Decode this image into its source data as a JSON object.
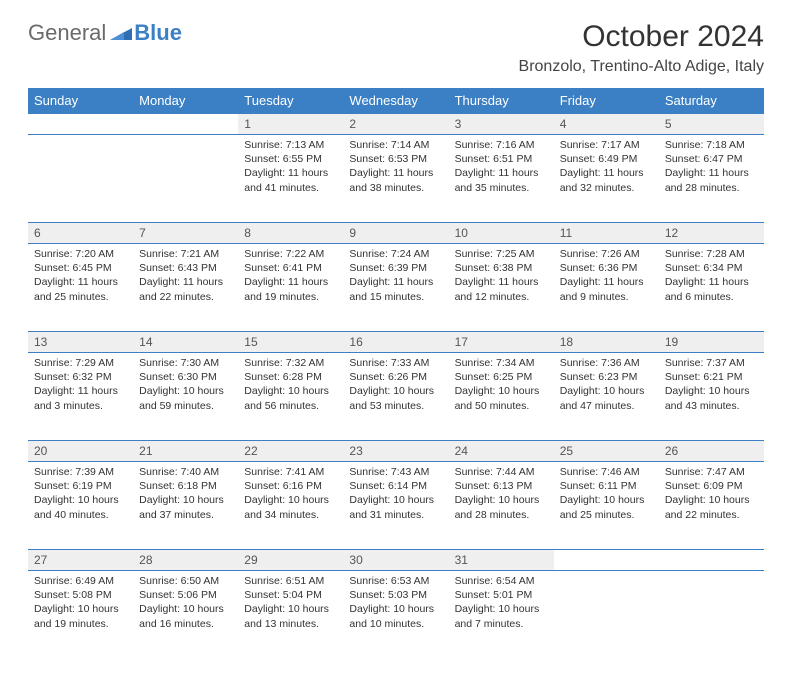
{
  "brand": {
    "part1": "General",
    "part2": "Blue"
  },
  "title": "October 2024",
  "location": "Bronzolo, Trentino-Alto Adige, Italy",
  "colors": {
    "header_bg": "#3b7fc4",
    "daynum_bg": "#efefef",
    "border": "#3b7fc4",
    "text": "#333333",
    "bg": "#ffffff"
  },
  "typography": {
    "title_fontsize": 30,
    "location_fontsize": 16,
    "dayhead_fontsize": 13,
    "cell_fontsize": 10.5
  },
  "days_of_week": [
    "Sunday",
    "Monday",
    "Tuesday",
    "Wednesday",
    "Thursday",
    "Friday",
    "Saturday"
  ],
  "weeks": [
    [
      null,
      null,
      {
        "n": "1",
        "sr": "7:13 AM",
        "ss": "6:55 PM",
        "dl": "11 hours and 41 minutes."
      },
      {
        "n": "2",
        "sr": "7:14 AM",
        "ss": "6:53 PM",
        "dl": "11 hours and 38 minutes."
      },
      {
        "n": "3",
        "sr": "7:16 AM",
        "ss": "6:51 PM",
        "dl": "11 hours and 35 minutes."
      },
      {
        "n": "4",
        "sr": "7:17 AM",
        "ss": "6:49 PM",
        "dl": "11 hours and 32 minutes."
      },
      {
        "n": "5",
        "sr": "7:18 AM",
        "ss": "6:47 PM",
        "dl": "11 hours and 28 minutes."
      }
    ],
    [
      {
        "n": "6",
        "sr": "7:20 AM",
        "ss": "6:45 PM",
        "dl": "11 hours and 25 minutes."
      },
      {
        "n": "7",
        "sr": "7:21 AM",
        "ss": "6:43 PM",
        "dl": "11 hours and 22 minutes."
      },
      {
        "n": "8",
        "sr": "7:22 AM",
        "ss": "6:41 PM",
        "dl": "11 hours and 19 minutes."
      },
      {
        "n": "9",
        "sr": "7:24 AM",
        "ss": "6:39 PM",
        "dl": "11 hours and 15 minutes."
      },
      {
        "n": "10",
        "sr": "7:25 AM",
        "ss": "6:38 PM",
        "dl": "11 hours and 12 minutes."
      },
      {
        "n": "11",
        "sr": "7:26 AM",
        "ss": "6:36 PM",
        "dl": "11 hours and 9 minutes."
      },
      {
        "n": "12",
        "sr": "7:28 AM",
        "ss": "6:34 PM",
        "dl": "11 hours and 6 minutes."
      }
    ],
    [
      {
        "n": "13",
        "sr": "7:29 AM",
        "ss": "6:32 PM",
        "dl": "11 hours and 3 minutes."
      },
      {
        "n": "14",
        "sr": "7:30 AM",
        "ss": "6:30 PM",
        "dl": "10 hours and 59 minutes."
      },
      {
        "n": "15",
        "sr": "7:32 AM",
        "ss": "6:28 PM",
        "dl": "10 hours and 56 minutes."
      },
      {
        "n": "16",
        "sr": "7:33 AM",
        "ss": "6:26 PM",
        "dl": "10 hours and 53 minutes."
      },
      {
        "n": "17",
        "sr": "7:34 AM",
        "ss": "6:25 PM",
        "dl": "10 hours and 50 minutes."
      },
      {
        "n": "18",
        "sr": "7:36 AM",
        "ss": "6:23 PM",
        "dl": "10 hours and 47 minutes."
      },
      {
        "n": "19",
        "sr": "7:37 AM",
        "ss": "6:21 PM",
        "dl": "10 hours and 43 minutes."
      }
    ],
    [
      {
        "n": "20",
        "sr": "7:39 AM",
        "ss": "6:19 PM",
        "dl": "10 hours and 40 minutes."
      },
      {
        "n": "21",
        "sr": "7:40 AM",
        "ss": "6:18 PM",
        "dl": "10 hours and 37 minutes."
      },
      {
        "n": "22",
        "sr": "7:41 AM",
        "ss": "6:16 PM",
        "dl": "10 hours and 34 minutes."
      },
      {
        "n": "23",
        "sr": "7:43 AM",
        "ss": "6:14 PM",
        "dl": "10 hours and 31 minutes."
      },
      {
        "n": "24",
        "sr": "7:44 AM",
        "ss": "6:13 PM",
        "dl": "10 hours and 28 minutes."
      },
      {
        "n": "25",
        "sr": "7:46 AM",
        "ss": "6:11 PM",
        "dl": "10 hours and 25 minutes."
      },
      {
        "n": "26",
        "sr": "7:47 AM",
        "ss": "6:09 PM",
        "dl": "10 hours and 22 minutes."
      }
    ],
    [
      {
        "n": "27",
        "sr": "6:49 AM",
        "ss": "5:08 PM",
        "dl": "10 hours and 19 minutes."
      },
      {
        "n": "28",
        "sr": "6:50 AM",
        "ss": "5:06 PM",
        "dl": "10 hours and 16 minutes."
      },
      {
        "n": "29",
        "sr": "6:51 AM",
        "ss": "5:04 PM",
        "dl": "10 hours and 13 minutes."
      },
      {
        "n": "30",
        "sr": "6:53 AM",
        "ss": "5:03 PM",
        "dl": "10 hours and 10 minutes."
      },
      {
        "n": "31",
        "sr": "6:54 AM",
        "ss": "5:01 PM",
        "dl": "10 hours and 7 minutes."
      },
      null,
      null
    ]
  ],
  "labels": {
    "sunrise": "Sunrise:",
    "sunset": "Sunset:",
    "daylight": "Daylight:"
  }
}
